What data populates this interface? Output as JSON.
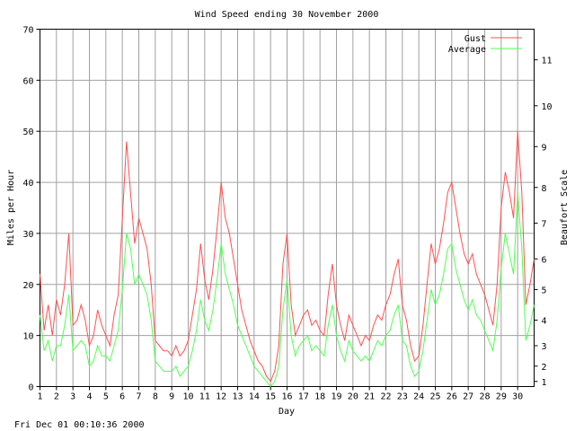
{
  "title": "Wind Speed ending 30 November 2000",
  "footer_timestamp": "Fri Dec 01 00:10:36 2000",
  "colors": {
    "gust": "#ff5050",
    "average": "#50ff50",
    "grid": "#a0a0a0",
    "axis": "#000000"
  },
  "chart_data": {
    "type": "line",
    "title": "Wind Speed ending 30 November 2000",
    "xlabel": "Day",
    "ylabel": "Miles per Hour",
    "y2label": "Beaufort Scale",
    "xlim": [
      1,
      31
    ],
    "ylim": [
      0,
      70
    ],
    "grid": true,
    "legend_position": "top-right",
    "x_ticks": [
      1,
      2,
      3,
      4,
      5,
      6,
      7,
      8,
      9,
      10,
      11,
      12,
      13,
      14,
      15,
      16,
      17,
      18,
      19,
      20,
      21,
      22,
      23,
      24,
      25,
      26,
      27,
      28,
      29,
      30
    ],
    "y_ticks": [
      0,
      10,
      20,
      30,
      40,
      50,
      60,
      70
    ],
    "beaufort_ticks": [
      {
        "label": "1",
        "mph": 1
      },
      {
        "label": "2",
        "mph": 4
      },
      {
        "label": "3",
        "mph": 8
      },
      {
        "label": "4",
        "mph": 13
      },
      {
        "label": "5",
        "mph": 19
      },
      {
        "label": "6",
        "mph": 25
      },
      {
        "label": "7",
        "mph": 32
      },
      {
        "label": "8",
        "mph": 39
      },
      {
        "label": "9",
        "mph": 47
      },
      {
        "label": "10",
        "mph": 55
      },
      {
        "label": "11",
        "mph": 64
      }
    ],
    "series": [
      {
        "name": "Gust",
        "color": "#ff5050",
        "points": [
          [
            1.0,
            22
          ],
          [
            1.25,
            11
          ],
          [
            1.5,
            16
          ],
          [
            1.75,
            10
          ],
          [
            2.0,
            17
          ],
          [
            2.25,
            14
          ],
          [
            2.5,
            20
          ],
          [
            2.75,
            30
          ],
          [
            3.0,
            12
          ],
          [
            3.25,
            13
          ],
          [
            3.5,
            16
          ],
          [
            3.75,
            13
          ],
          [
            4.0,
            8
          ],
          [
            4.25,
            10
          ],
          [
            4.5,
            15
          ],
          [
            4.75,
            12
          ],
          [
            5.0,
            10
          ],
          [
            5.25,
            8
          ],
          [
            5.5,
            14
          ],
          [
            5.75,
            18
          ],
          [
            6.0,
            33
          ],
          [
            6.25,
            48
          ],
          [
            6.5,
            38
          ],
          [
            6.75,
            28
          ],
          [
            7.0,
            33
          ],
          [
            7.25,
            30
          ],
          [
            7.5,
            27
          ],
          [
            7.75,
            20
          ],
          [
            8.0,
            9
          ],
          [
            8.25,
            8
          ],
          [
            8.5,
            7
          ],
          [
            8.75,
            7
          ],
          [
            9.0,
            6
          ],
          [
            9.25,
            8
          ],
          [
            9.5,
            6
          ],
          [
            9.75,
            7
          ],
          [
            10.0,
            9
          ],
          [
            10.25,
            14
          ],
          [
            10.5,
            19
          ],
          [
            10.75,
            28
          ],
          [
            11.0,
            21
          ],
          [
            11.25,
            17
          ],
          [
            11.5,
            23
          ],
          [
            11.75,
            31
          ],
          [
            12.0,
            40
          ],
          [
            12.25,
            33
          ],
          [
            12.5,
            30
          ],
          [
            12.75,
            25
          ],
          [
            13.0,
            20
          ],
          [
            13.25,
            15
          ],
          [
            13.5,
            12
          ],
          [
            13.75,
            9
          ],
          [
            14.0,
            7
          ],
          [
            14.25,
            5
          ],
          [
            14.5,
            4
          ],
          [
            14.75,
            2
          ],
          [
            15.0,
            1
          ],
          [
            15.25,
            3
          ],
          [
            15.5,
            8
          ],
          [
            15.75,
            24
          ],
          [
            16.0,
            30
          ],
          [
            16.25,
            16
          ],
          [
            16.5,
            10
          ],
          [
            16.75,
            12
          ],
          [
            17.0,
            14
          ],
          [
            17.25,
            15
          ],
          [
            17.5,
            12
          ],
          [
            17.75,
            13
          ],
          [
            18.0,
            11
          ],
          [
            18.25,
            10
          ],
          [
            18.5,
            18
          ],
          [
            18.75,
            24
          ],
          [
            19.0,
            16
          ],
          [
            19.25,
            12
          ],
          [
            19.5,
            9
          ],
          [
            19.75,
            14
          ],
          [
            20.0,
            12
          ],
          [
            20.25,
            10
          ],
          [
            20.5,
            8
          ],
          [
            20.75,
            10
          ],
          [
            21.0,
            9
          ],
          [
            21.25,
            12
          ],
          [
            21.5,
            14
          ],
          [
            21.75,
            13
          ],
          [
            22.0,
            16
          ],
          [
            22.25,
            18
          ],
          [
            22.5,
            22
          ],
          [
            22.75,
            25
          ],
          [
            23.0,
            16
          ],
          [
            23.25,
            13
          ],
          [
            23.5,
            8
          ],
          [
            23.75,
            5
          ],
          [
            24.0,
            6
          ],
          [
            24.25,
            12
          ],
          [
            24.5,
            20
          ],
          [
            24.75,
            28
          ],
          [
            25.0,
            24
          ],
          [
            25.25,
            27
          ],
          [
            25.5,
            32
          ],
          [
            25.75,
            38
          ],
          [
            26.0,
            40
          ],
          [
            26.25,
            35
          ],
          [
            26.5,
            30
          ],
          [
            26.75,
            26
          ],
          [
            27.0,
            24
          ],
          [
            27.25,
            26
          ],
          [
            27.5,
            22
          ],
          [
            27.75,
            20
          ],
          [
            28.0,
            18
          ],
          [
            28.25,
            15
          ],
          [
            28.5,
            12
          ],
          [
            28.75,
            20
          ],
          [
            29.0,
            35
          ],
          [
            29.25,
            42
          ],
          [
            29.5,
            38
          ],
          [
            29.75,
            33
          ],
          [
            30.0,
            50
          ],
          [
            30.25,
            38
          ],
          [
            30.5,
            16
          ],
          [
            30.75,
            20
          ],
          [
            31.0,
            25
          ]
        ]
      },
      {
        "name": "Average",
        "color": "#50ff50",
        "points": [
          [
            1.0,
            14
          ],
          [
            1.25,
            7
          ],
          [
            1.5,
            9
          ],
          [
            1.75,
            5
          ],
          [
            2.0,
            8
          ],
          [
            2.25,
            8
          ],
          [
            2.5,
            12
          ],
          [
            2.75,
            18
          ],
          [
            3.0,
            7
          ],
          [
            3.25,
            8
          ],
          [
            3.5,
            9
          ],
          [
            3.75,
            8
          ],
          [
            4.0,
            4
          ],
          [
            4.25,
            5
          ],
          [
            4.5,
            8
          ],
          [
            4.75,
            6
          ],
          [
            5.0,
            6
          ],
          [
            5.25,
            5
          ],
          [
            5.5,
            8
          ],
          [
            5.75,
            11
          ],
          [
            6.0,
            19
          ],
          [
            6.25,
            30
          ],
          [
            6.5,
            27
          ],
          [
            6.75,
            20
          ],
          [
            7.0,
            22
          ],
          [
            7.25,
            20
          ],
          [
            7.5,
            18
          ],
          [
            7.75,
            13
          ],
          [
            8.0,
            5
          ],
          [
            8.25,
            4
          ],
          [
            8.5,
            3
          ],
          [
            8.75,
            3
          ],
          [
            9.0,
            3
          ],
          [
            9.25,
            4
          ],
          [
            9.5,
            2
          ],
          [
            9.75,
            3
          ],
          [
            10.0,
            4
          ],
          [
            10.25,
            7
          ],
          [
            10.5,
            11
          ],
          [
            10.75,
            17
          ],
          [
            11.0,
            13
          ],
          [
            11.25,
            11
          ],
          [
            11.5,
            15
          ],
          [
            11.75,
            21
          ],
          [
            12.0,
            28
          ],
          [
            12.25,
            22
          ],
          [
            12.5,
            19
          ],
          [
            12.75,
            16
          ],
          [
            13.0,
            12
          ],
          [
            13.25,
            10
          ],
          [
            13.5,
            8
          ],
          [
            13.75,
            6
          ],
          [
            14.0,
            4
          ],
          [
            14.25,
            3
          ],
          [
            14.5,
            2
          ],
          [
            14.75,
            1
          ],
          [
            15.0,
            0
          ],
          [
            15.25,
            1
          ],
          [
            15.5,
            4
          ],
          [
            15.75,
            15
          ],
          [
            16.0,
            21
          ],
          [
            16.25,
            10
          ],
          [
            16.5,
            6
          ],
          [
            16.75,
            8
          ],
          [
            17.0,
            9
          ],
          [
            17.25,
            10
          ],
          [
            17.5,
            7
          ],
          [
            17.75,
            8
          ],
          [
            18.0,
            7
          ],
          [
            18.25,
            6
          ],
          [
            18.5,
            12
          ],
          [
            18.75,
            16
          ],
          [
            19.0,
            10
          ],
          [
            19.25,
            7
          ],
          [
            19.5,
            5
          ],
          [
            19.75,
            9
          ],
          [
            20.0,
            7
          ],
          [
            20.25,
            6
          ],
          [
            20.5,
            5
          ],
          [
            20.75,
            6
          ],
          [
            21.0,
            5
          ],
          [
            21.25,
            7
          ],
          [
            21.5,
            9
          ],
          [
            21.75,
            8
          ],
          [
            22.0,
            10
          ],
          [
            22.25,
            11
          ],
          [
            22.5,
            14
          ],
          [
            22.75,
            16
          ],
          [
            23.0,
            9
          ],
          [
            23.25,
            8
          ],
          [
            23.5,
            4
          ],
          [
            23.75,
            2
          ],
          [
            24.0,
            3
          ],
          [
            24.25,
            7
          ],
          [
            24.5,
            13
          ],
          [
            24.75,
            19
          ],
          [
            25.0,
            16
          ],
          [
            25.25,
            18
          ],
          [
            25.5,
            22
          ],
          [
            25.75,
            27
          ],
          [
            26.0,
            28
          ],
          [
            26.25,
            23
          ],
          [
            26.5,
            20
          ],
          [
            26.75,
            17
          ],
          [
            27.0,
            15
          ],
          [
            27.25,
            17
          ],
          [
            27.5,
            14
          ],
          [
            27.75,
            13
          ],
          [
            28.0,
            11
          ],
          [
            28.25,
            9
          ],
          [
            28.5,
            7
          ],
          [
            28.75,
            13
          ],
          [
            29.0,
            23
          ],
          [
            29.25,
            30
          ],
          [
            29.5,
            26
          ],
          [
            29.75,
            22
          ],
          [
            30.0,
            38
          ],
          [
            30.25,
            27
          ],
          [
            30.5,
            9
          ],
          [
            30.75,
            12
          ],
          [
            31.0,
            16
          ]
        ]
      }
    ]
  }
}
